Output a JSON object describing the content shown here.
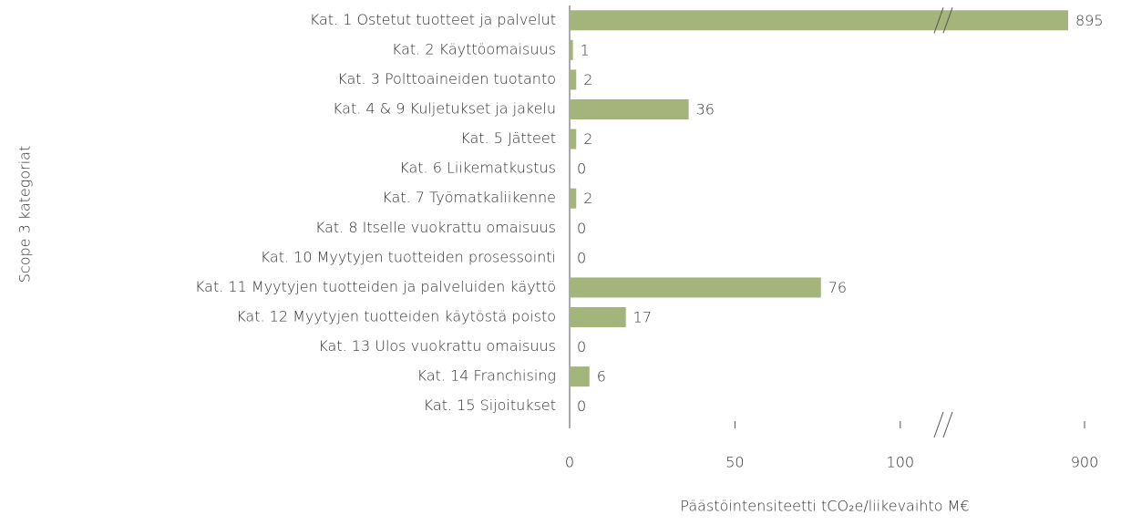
{
  "chart_data": {
    "type": "bar",
    "orientation": "horizontal",
    "categories": [
      "Kat. 1 Ostetut tuotteet ja palvelut",
      "Kat. 2 Käyttöomaisuus",
      "Kat. 3 Polttoaineiden tuotanto",
      "Kat. 4 & 9 Kuljetukset ja jakelu",
      "Kat. 5 Jätteet",
      "Kat. 6 Liikematkustus",
      "Kat. 7 Työmatkaliikenne",
      "Kat. 8 Itselle vuokrattu omaisuus",
      "Kat. 10 Myytyjen tuotteiden prosessointi",
      "Kat. 11 Myytyjen tuotteiden ja palveluiden käyttö",
      "Kat. 12 Myytyjen tuotteiden käytöstä poisto",
      "Kat. 13 Ulos vuokrattu omaisuus",
      "Kat. 14 Franchising",
      "Kat. 15 Sijoitukset"
    ],
    "values": [
      895,
      1,
      2,
      36,
      2,
      0,
      2,
      0,
      0,
      76,
      17,
      0,
      6,
      0
    ],
    "color": "#a3b57a",
    "xlim": [
      0,
      900
    ],
    "xticks": [
      0,
      50,
      100,
      900
    ],
    "xbreak": [
      113,
      857
    ],
    "xlabel": "Päästöintensiteetti tCO₂e/liikevaihto M€",
    "ylabel": "Scope 3 kategoriat"
  }
}
